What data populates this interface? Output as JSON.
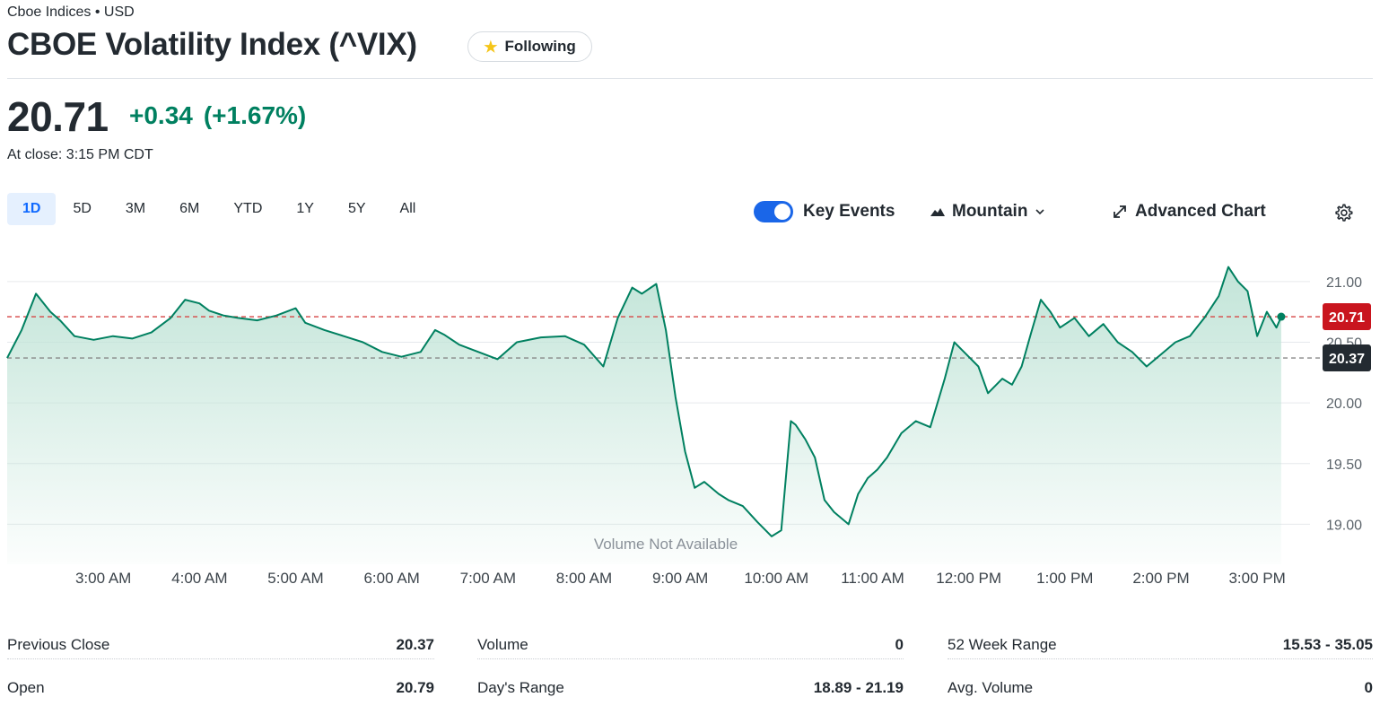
{
  "header": {
    "exchange": "Cboe Indices • USD",
    "title": "CBOE Volatility Index (^VIX)",
    "follow_label": "Following",
    "follow_icon": "star-icon"
  },
  "quote": {
    "price": "20.71",
    "change": "+0.34",
    "change_percent": "(+1.67%)",
    "close_time": "At close: 3:15 PM CDT"
  },
  "range_tabs": [
    "1D",
    "5D",
    "3M",
    "6M",
    "YTD",
    "1Y",
    "5Y",
    "All"
  ],
  "active_range": "1D",
  "toolbar": {
    "key_events_label": "Key Events",
    "key_events_on": true,
    "chart_type_label": "Mountain",
    "advanced_label": "Advanced Chart"
  },
  "colors": {
    "line": "#008060",
    "fill": "#cfe9e0",
    "price_badge": "#c9151e",
    "prev_close_badge": "#232a31",
    "positive": "#008060",
    "accent": "#0f69ff"
  },
  "chart_data": {
    "type": "area",
    "ylim": [
      18.7,
      21.25
    ],
    "yticks": [
      "21.00",
      "20.50",
      "20.00",
      "19.50",
      "19.00"
    ],
    "ytick_values": [
      21.0,
      20.5,
      20.0,
      19.5,
      19.0
    ],
    "xticks": [
      "3:00 AM",
      "4:00 AM",
      "5:00 AM",
      "6:00 AM",
      "7:00 AM",
      "8:00 AM",
      "9:00 AM",
      "10:00 AM",
      "11:00 AM",
      "12:00 PM",
      "1:00 PM",
      "2:00 PM",
      "3:00 PM"
    ],
    "xtick_hours": [
      3,
      4,
      5,
      6,
      7,
      8,
      9,
      10,
      11,
      12,
      13,
      14,
      15
    ],
    "x_start_hour": 2.0,
    "x_end_hour": 15.4,
    "series": [
      {
        "x": [
          2.0,
          2.15,
          2.3,
          2.45,
          2.55,
          2.7,
          2.9,
          3.1,
          3.3,
          3.5,
          3.7,
          3.85,
          4.0,
          4.1,
          4.25,
          4.4,
          4.6,
          4.8,
          5.0,
          5.1,
          5.3,
          5.5,
          5.7,
          5.9,
          6.1,
          6.3,
          6.45,
          6.55,
          6.7,
          6.9,
          7.1,
          7.3,
          7.55,
          7.8,
          8.0,
          8.2,
          8.35,
          8.5,
          8.6,
          8.75,
          8.85,
          8.95,
          9.05,
          9.15,
          9.25,
          9.4,
          9.5,
          9.65,
          9.8,
          9.95,
          10.05,
          10.15,
          10.2,
          10.3,
          10.4,
          10.5,
          10.6,
          10.75,
          10.85,
          10.95,
          11.05,
          11.15,
          11.3,
          11.45,
          11.6,
          11.75,
          11.85,
          11.95,
          12.1,
          12.2,
          12.35,
          12.45,
          12.55,
          12.65,
          12.75,
          12.85,
          12.95,
          13.1,
          13.25,
          13.4,
          13.55,
          13.7,
          13.85,
          14.0,
          14.15,
          14.3,
          14.45,
          14.6,
          14.7,
          14.8,
          14.9,
          15.0,
          15.1,
          15.2,
          15.25
        ],
        "values": [
          20.37,
          20.6,
          20.9,
          20.75,
          20.68,
          20.55,
          20.52,
          20.55,
          20.53,
          20.58,
          20.7,
          20.85,
          20.82,
          20.76,
          20.72,
          20.7,
          20.68,
          20.72,
          20.78,
          20.66,
          20.6,
          20.55,
          20.5,
          20.42,
          20.38,
          20.42,
          20.6,
          20.56,
          20.48,
          20.42,
          20.36,
          20.5,
          20.54,
          20.55,
          20.48,
          20.3,
          20.7,
          20.95,
          20.9,
          20.98,
          20.6,
          20.05,
          19.6,
          19.3,
          19.35,
          19.25,
          19.2,
          19.15,
          19.02,
          18.9,
          18.95,
          19.85,
          19.82,
          19.7,
          19.55,
          19.2,
          19.1,
          19.0,
          19.25,
          19.38,
          19.45,
          19.55,
          19.75,
          19.85,
          19.8,
          20.2,
          20.5,
          20.42,
          20.3,
          20.08,
          20.2,
          20.15,
          20.3,
          20.58,
          20.85,
          20.75,
          20.62,
          20.7,
          20.55,
          20.65,
          20.5,
          20.42,
          20.3,
          20.4,
          20.5,
          20.55,
          20.7,
          20.88,
          21.12,
          21.0,
          20.92,
          20.55,
          20.75,
          20.62,
          20.71
        ]
      }
    ],
    "current_value": 20.71,
    "current_label": "20.71",
    "previous_close_value": 20.37,
    "previous_close_label": "20.37",
    "watermark": "Volume Not Available",
    "grid": true
  },
  "stats": [
    [
      {
        "label": "Previous Close",
        "value": "20.37"
      },
      {
        "label": "Open",
        "value": "20.79"
      }
    ],
    [
      {
        "label": "Volume",
        "value": "0"
      },
      {
        "label": "Day's Range",
        "value": "18.89 - 21.19"
      }
    ],
    [
      {
        "label": "52 Week Range",
        "value": "15.53 - 35.05"
      },
      {
        "label": "Avg. Volume",
        "value": "0"
      }
    ]
  ]
}
